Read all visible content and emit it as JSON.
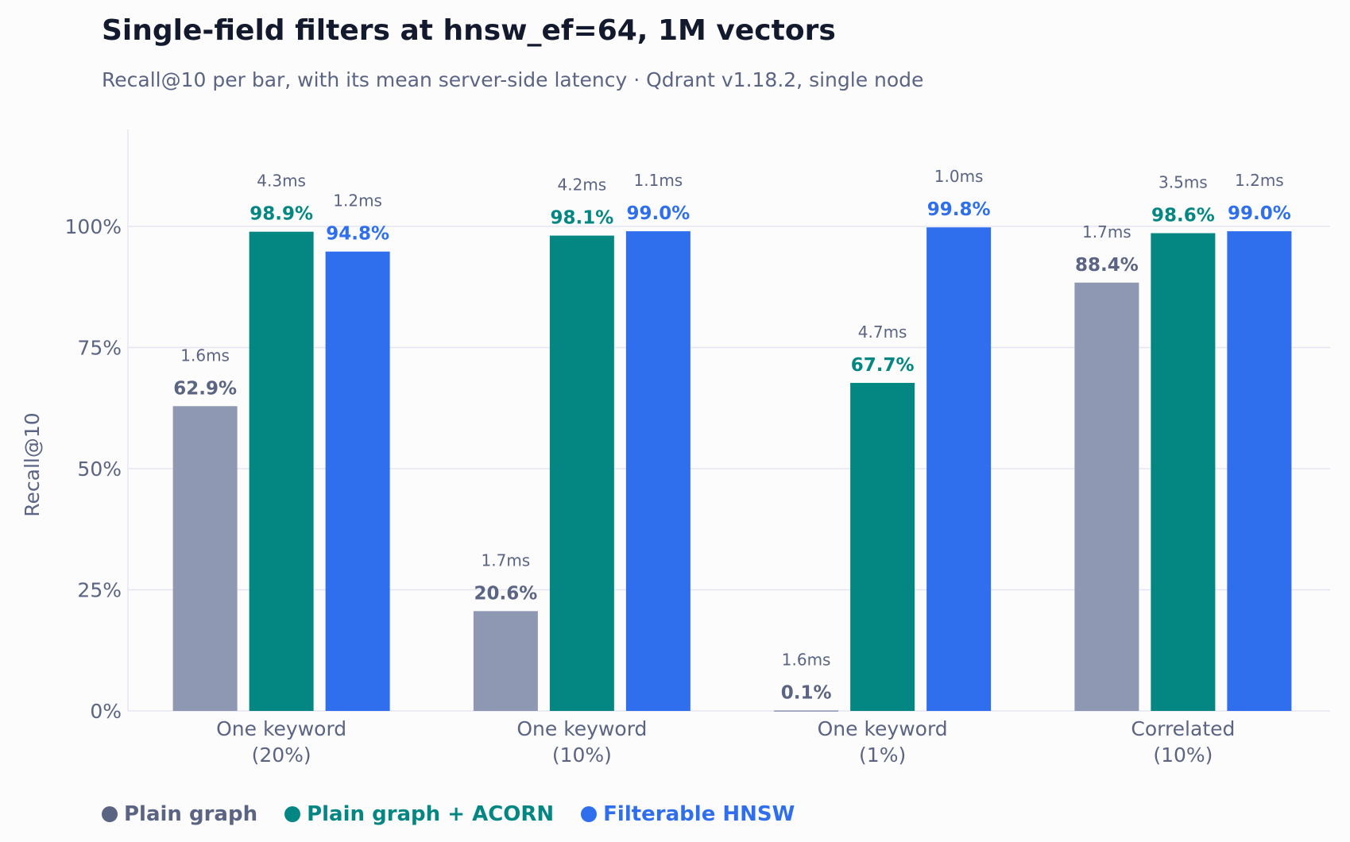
{
  "title": "Single-field filters at hnsw_ef=64, 1M vectors",
  "subtitle": "Recall@10 per bar, with its mean server-side latency  ·  Qdrant v1.18.2, single node",
  "colors": {
    "plain": "#8f98b2",
    "acorn": "#048782",
    "filterable": "#2f6fed",
    "plain_label": "#5b6482",
    "grid": "#e3e5f0",
    "axis_text": "#5b6482"
  },
  "chart_data": {
    "type": "bar",
    "categories": [
      [
        "One keyword",
        "(20%)"
      ],
      [
        "One keyword",
        "(10%)"
      ],
      [
        "One keyword",
        "(1%)"
      ],
      [
        "Correlated",
        "(10%)"
      ]
    ],
    "ylabel": "Recall@10",
    "xlabel": "",
    "ylim": [
      0,
      1.2
    ],
    "yticks": [
      0,
      25,
      50,
      75,
      100
    ],
    "ytick_labels": [
      "0%",
      "25%",
      "50%",
      "75%",
      "100%"
    ],
    "grid": true,
    "legend_position": "bottom-left",
    "series": [
      {
        "name": "Plain graph",
        "color_key": "plain",
        "label_color_key": "plain_label",
        "values": [
          62.9,
          20.6,
          0.1,
          88.4
        ],
        "value_labels": [
          "62.9%",
          "20.6%",
          "0.1%",
          "88.4%"
        ],
        "latency_labels": [
          "1.6ms",
          "1.7ms",
          "1.6ms",
          "1.7ms"
        ]
      },
      {
        "name": "Plain graph + ACORN",
        "color_key": "acorn",
        "label_color_key": "acorn",
        "values": [
          98.9,
          98.1,
          67.7,
          98.6
        ],
        "value_labels": [
          "98.9%",
          "98.1%",
          "67.7%",
          "98.6%"
        ],
        "latency_labels": [
          "4.3ms",
          "4.2ms",
          "4.7ms",
          "3.5ms"
        ]
      },
      {
        "name": "Filterable HNSW",
        "color_key": "filterable",
        "label_color_key": "filterable",
        "values": [
          94.8,
          99.0,
          99.8,
          99.0
        ],
        "value_labels": [
          "94.8%",
          "99.0%",
          "99.8%",
          "99.0%"
        ],
        "latency_labels": [
          "1.2ms",
          "1.1ms",
          "1.0ms",
          "1.2ms"
        ]
      }
    ]
  }
}
